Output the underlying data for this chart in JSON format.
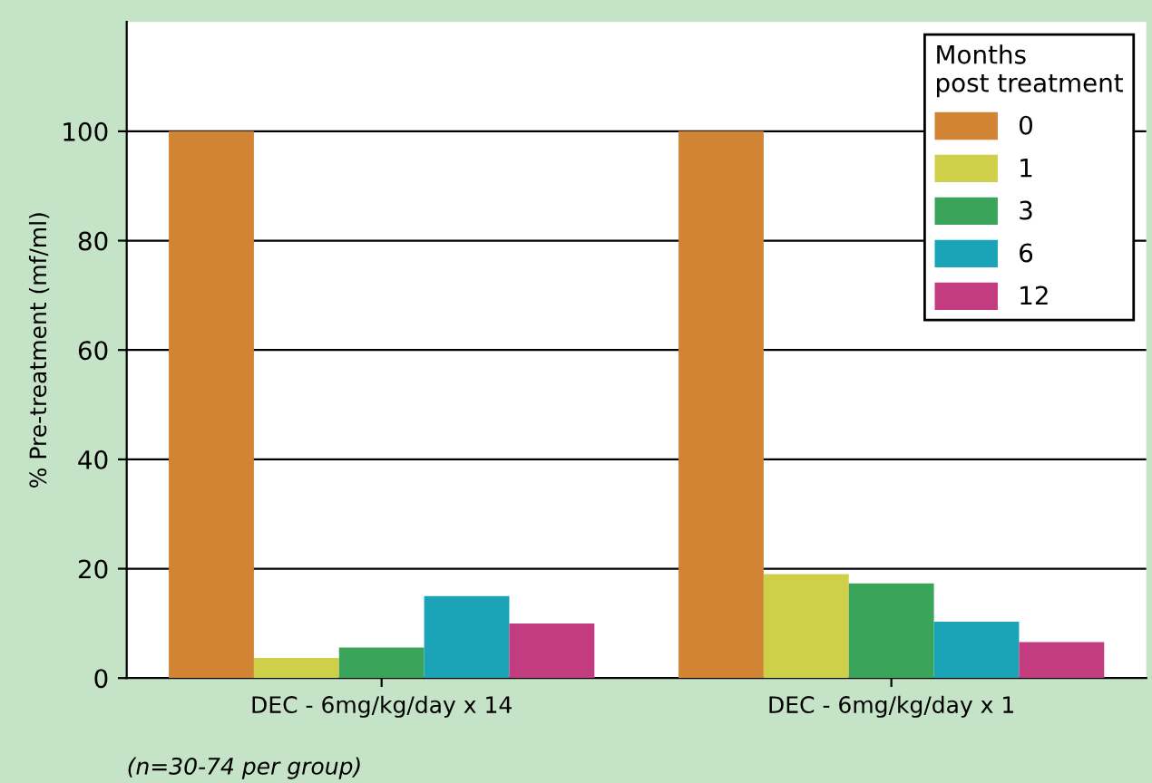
{
  "chart_data": {
    "type": "bar",
    "ylabel": "% Pre-treatment (mf/ml)",
    "categories": [
      "DEC - 6mg/kg/day x 14",
      "DEC - 6mg/kg/day x 1"
    ],
    "series": [
      {
        "name": "0",
        "color": "#d08434",
        "values": [
          100,
          100
        ]
      },
      {
        "name": "1",
        "color": "#cfd04a",
        "values": [
          3.7,
          19
        ]
      },
      {
        "name": "3",
        "color": "#3aa45a",
        "values": [
          5.6,
          17.3
        ]
      },
      {
        "name": "6",
        "color": "#1ba3b8",
        "values": [
          15,
          10.3
        ]
      },
      {
        "name": "12",
        "color": "#c43c80",
        "values": [
          10,
          6.6
        ]
      }
    ],
    "legend_title": "Months\npost treatment",
    "legend": "top right",
    "ylim": [
      0,
      120
    ],
    "yticks": [
      0,
      20,
      40,
      60,
      80,
      100
    ],
    "grid": "y",
    "annotations": [
      "(n=30-74 per group)"
    ]
  }
}
